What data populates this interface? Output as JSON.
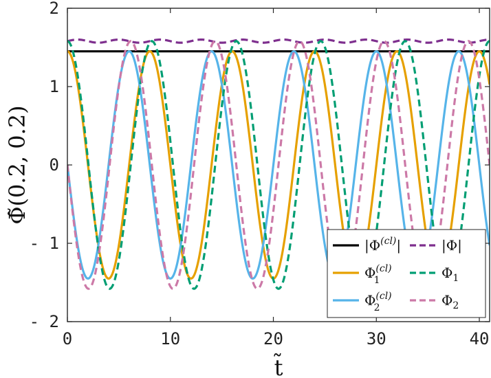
{
  "chart_data": {
    "type": "line",
    "title": "",
    "xlabel": "t̃",
    "ylabel": "Φ̃(0.2, 0.2)",
    "xlim": [
      0,
      41
    ],
    "ylim": [
      -2,
      2
    ],
    "xticks": [
      0,
      10,
      20,
      30,
      40
    ],
    "yticks": [
      2,
      1,
      0,
      -1,
      -2
    ],
    "xtick_labels": [
      "0",
      "10",
      "20",
      "30",
      "40"
    ],
    "ytick_labels": [
      "2",
      "1",
      "0",
      "- 1",
      "- 2"
    ],
    "grid": false,
    "legend_position": "bottom-right",
    "series": [
      {
        "name": "|Φ(cl)|",
        "color": "#000000",
        "style": "solid",
        "model": "constant",
        "value": 1.45
      },
      {
        "name": "Φ1(cl)",
        "color": "#E6A000",
        "style": "solid",
        "model": "cos",
        "amplitude": 1.45,
        "period": 8.0,
        "phase": 0
      },
      {
        "name": "Φ2(cl)",
        "color": "#56B4E9",
        "style": "solid",
        "model": "sin",
        "amplitude": -1.45,
        "period": 8.0,
        "phase": 0
      },
      {
        "name": "|Φ|",
        "color": "#7E2F8E",
        "style": "dashed",
        "model": "wobble",
        "value": 1.58,
        "wobble": 0.02,
        "period": 4.0
      },
      {
        "name": "Φ1",
        "color": "#009E73",
        "style": "dashed",
        "model": "cos",
        "amplitude": 1.58,
        "period": 8.2,
        "phase": 0
      },
      {
        "name": "Φ2",
        "color": "#CC79A7",
        "style": "dashed",
        "model": "sin",
        "amplitude": -1.58,
        "period": 8.2,
        "phase": 0
      }
    ]
  },
  "legend": {
    "items": [
      {
        "base": "|Φ",
        "sup": "(cl)",
        "sub": "",
        "tail": "|"
      },
      {
        "base": "|Φ|",
        "sup": "",
        "sub": "",
        "tail": ""
      },
      {
        "base": "Φ",
        "sup": "(cl)",
        "sub": "1",
        "tail": ""
      },
      {
        "base": "Φ",
        "sup": "",
        "sub": "1",
        "tail": ""
      },
      {
        "base": "Φ",
        "sup": "(cl)",
        "sub": "2",
        "tail": ""
      },
      {
        "base": "Φ",
        "sup": "",
        "sub": "2",
        "tail": ""
      }
    ]
  }
}
